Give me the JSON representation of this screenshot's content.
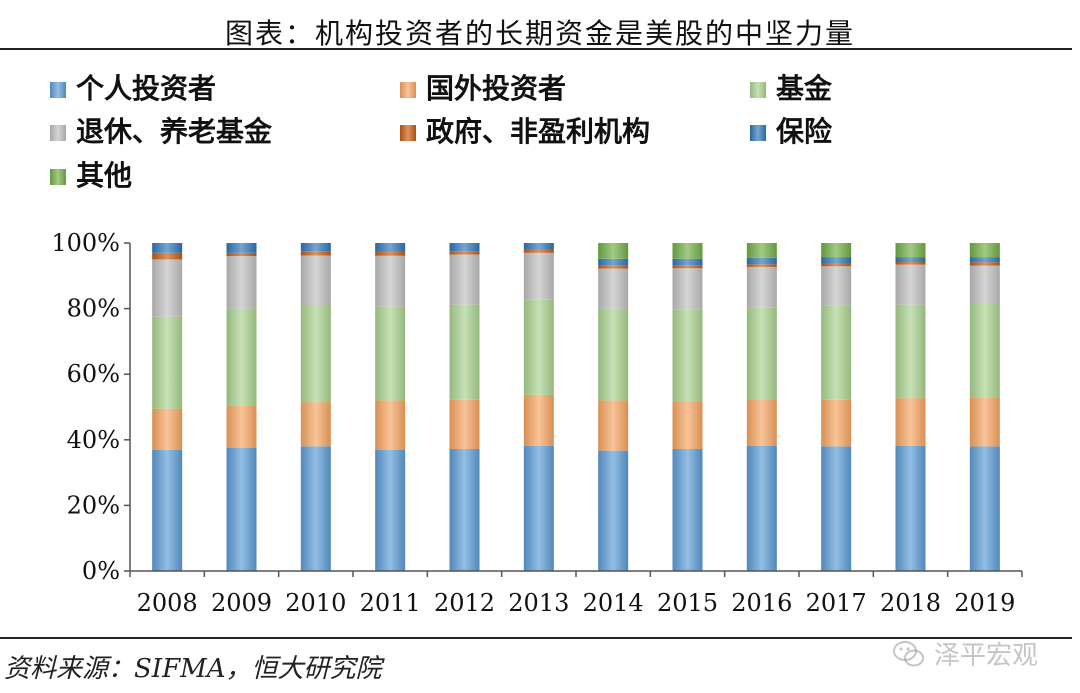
{
  "header": {
    "title": "图表：机构投资者的长期资金是美股的中坚力量"
  },
  "footer": {
    "source": "资料来源：SIFMA，恒大研究院",
    "watermark": "泽平宏观"
  },
  "colors": {
    "individual": "#5B9BD5",
    "foreign": "#F4A460",
    "funds": "#A9D18E",
    "pension": "#BFBFBF",
    "government": "#C55A11",
    "insurance": "#2E75B6",
    "other": "#70AD47"
  },
  "chart_data": {
    "type": "bar",
    "stacked": true,
    "percent": true,
    "categories": [
      "2008",
      "2009",
      "2010",
      "2011",
      "2012",
      "2013",
      "2014",
      "2015",
      "2016",
      "2017",
      "2018",
      "2019"
    ],
    "ylim": [
      0,
      100
    ],
    "yticks": [
      "0%",
      "20%",
      "40%",
      "60%",
      "80%",
      "100%"
    ],
    "legend_position": "top",
    "grid": false,
    "series": [
      {
        "name": "个人投资者",
        "color_key": "individual",
        "values": [
          37,
          37.5,
          38,
          37,
          37.2,
          38.2,
          36.7,
          37.2,
          38.2,
          38,
          38.2,
          38
        ]
      },
      {
        "name": "国外投资者",
        "color_key": "foreign",
        "values": [
          12.5,
          13,
          13.5,
          15,
          15,
          15.5,
          15.3,
          14.6,
          14.1,
          14.2,
          14.5,
          15
        ]
      },
      {
        "name": "基金",
        "color_key": "funds",
        "values": [
          28,
          29.5,
          29.3,
          28.6,
          29,
          29,
          28,
          28,
          28.1,
          28.7,
          28.5,
          28.4
        ]
      },
      {
        "name": "退休、养老基金",
        "color_key": "pension",
        "values": [
          17.5,
          16,
          15.4,
          15.5,
          15.3,
          14.3,
          12.2,
          12.5,
          12.3,
          12,
          12.2,
          11.7
        ]
      },
      {
        "name": "政府、非盈利机构",
        "color_key": "government",
        "values": [
          2,
          1,
          1.3,
          1.3,
          1,
          1,
          1,
          0.9,
          0.8,
          1,
          0.8,
          1
        ]
      },
      {
        "name": "保险",
        "color_key": "insurance",
        "values": [
          3,
          3,
          2.5,
          2.6,
          2.5,
          2,
          2,
          2,
          2,
          1.8,
          1.5,
          1.6
        ]
      },
      {
        "name": "其他",
        "color_key": "other",
        "values": [
          0,
          0,
          0,
          0,
          0,
          0,
          4.8,
          4.8,
          4.5,
          4.3,
          4.3,
          4.3
        ]
      }
    ]
  }
}
